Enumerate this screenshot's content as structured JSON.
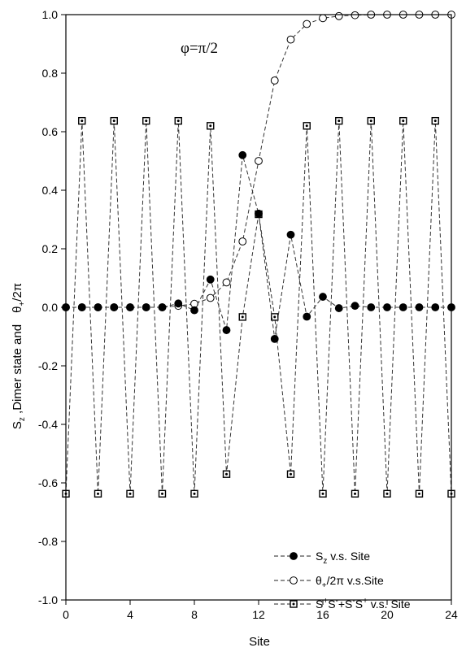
{
  "chart_data": {
    "type": "line",
    "title": "",
    "xlabel": "Site",
    "ylabel_parts": [
      "S",
      "z",
      " ,Dimer state and",
      "θ",
      "+",
      "/2π"
    ],
    "annotation": "φ=π/2",
    "xlim": [
      0,
      24
    ],
    "ylim": [
      -1.0,
      1.0
    ],
    "x_ticks": [
      0,
      4,
      8,
      12,
      16,
      20,
      24
    ],
    "y_ticks": [
      "-1.0",
      "-0.8",
      "-0.6",
      "-0.4",
      "-0.2",
      "0.0",
      "0.2",
      "0.4",
      "0.6",
      "0.8",
      "1.0"
    ],
    "grid": false,
    "legend_position": "bottom-right",
    "x": [
      0,
      1,
      2,
      3,
      4,
      5,
      6,
      7,
      8,
      9,
      10,
      11,
      12,
      13,
      14,
      15,
      16,
      17,
      18,
      19,
      20,
      21,
      22,
      23,
      24
    ],
    "series": [
      {
        "legend_parts": [
          "S",
          "z",
          " v.s. Site"
        ],
        "marker": "filled-circle",
        "values": [
          0,
          0,
          0,
          0,
          0,
          0,
          0,
          0.013,
          -0.01,
          0.095,
          -0.078,
          0.52,
          0.32,
          -0.108,
          0.248,
          -0.032,
          0.036,
          -0.003,
          0.005,
          0,
          0,
          0,
          0,
          0,
          0
        ]
      },
      {
        "legend_parts": [
          "θ",
          "+",
          "/2π  v.s.Site"
        ],
        "marker": "open-circle",
        "values": [
          0,
          0,
          0,
          0,
          0,
          0,
          0,
          0.005,
          0.012,
          0.032,
          0.085,
          0.225,
          0.5,
          0.775,
          0.915,
          0.968,
          0.988,
          0.995,
          0.998,
          1.0,
          1.0,
          1.0,
          1.0,
          1.0,
          1.0
        ]
      },
      {
        "legend_parts": [
          "S",
          "+",
          "S",
          "-",
          "+S",
          "-",
          "S",
          "+",
          " v.s. Site"
        ],
        "marker": "dotted-square",
        "values": [
          -0.637,
          0.637,
          -0.637,
          0.637,
          -0.637,
          0.637,
          -0.637,
          0.637,
          -0.637,
          0.62,
          -0.57,
          -0.033,
          0.318,
          -0.033,
          -0.57,
          0.62,
          -0.637,
          0.637,
          -0.637,
          0.637,
          -0.637,
          0.637,
          -0.637,
          0.637,
          -0.637
        ]
      }
    ]
  }
}
